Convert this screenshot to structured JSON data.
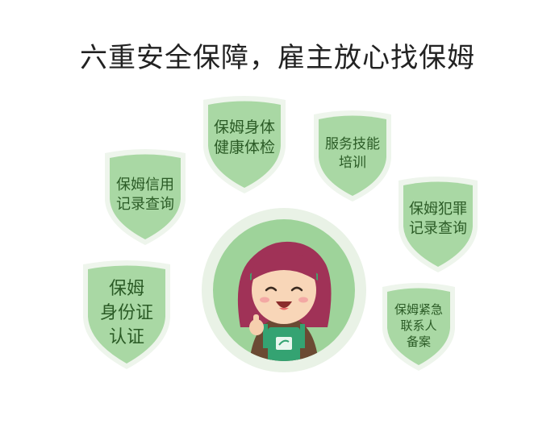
{
  "title": "六重安全保障，雇主放心找保姆",
  "colors": {
    "shield_fill": "#a9d8a4",
    "shield_ring": "#eef5ec",
    "text": "#2b5b26",
    "center_ring": "#e9f2e6",
    "center_fill": "#9ed39a"
  },
  "badges": [
    {
      "lines": [
        "保姆信用",
        "记录查询"
      ]
    },
    {
      "lines": [
        "保姆身体",
        "健康体检"
      ]
    },
    {
      "lines": [
        "服务技能",
        "培训"
      ]
    },
    {
      "lines": [
        "保姆犯罪",
        "记录查询"
      ]
    },
    {
      "lines": [
        "保姆",
        "身份证",
        "认证"
      ]
    },
    {
      "lines": [
        "保姆紧急",
        "联系人",
        "备案"
      ]
    }
  ],
  "center": {
    "icon": "nanny-avatar-icon"
  }
}
